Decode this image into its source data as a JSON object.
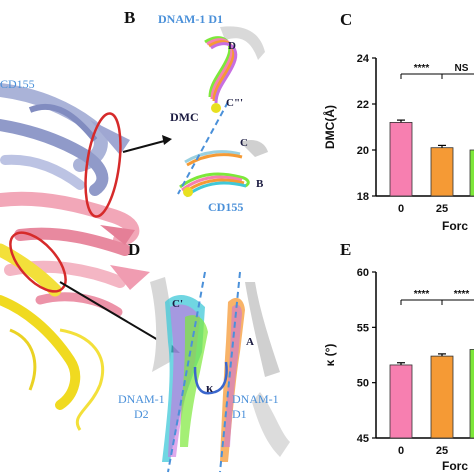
{
  "panels": {
    "b": {
      "letter": "B",
      "title": "DNAM-1 D1",
      "label_dmc": "DMC",
      "label_d": "D",
      "label_c3": "C\"'",
      "label_c": "C",
      "label_b": "B",
      "label_cd155": "CD155"
    },
    "a": {
      "label_cd155": "CD155"
    },
    "c": {
      "letter": "C"
    },
    "d": {
      "letter": "D",
      "label_c2": "C'",
      "label_a": "A",
      "label_kappa": "κ",
      "label_left": "DNAM-1\nD2",
      "label_right": "DNAM-1\nD1",
      "left_line1": "DNAM-1",
      "left_line2": "D2",
      "right_line1": "DNAM-1",
      "right_line2": "D1"
    },
    "e": {
      "letter": "E"
    }
  },
  "colors": {
    "pink": "#f77fb0",
    "orange": "#f59a35",
    "green": "#7de83a",
    "blue_text": "#4a90d9"
  },
  "chart_data": [
    {
      "type": "bar",
      "panel": "C",
      "ylabel": "DMC(Å)",
      "xlabel": "Forc",
      "categories": [
        "0",
        "25",
        "5"
      ],
      "values": [
        21.2,
        20.1,
        20.0
      ],
      "errors": [
        0.1,
        0.1,
        0.1
      ],
      "colors": [
        "#f77fb0",
        "#f59a35",
        "#7de83a"
      ],
      "ylim": [
        18,
        24
      ],
      "yticks": [
        "18",
        "20",
        "22",
        "24"
      ],
      "significance": [
        {
          "label": "****",
          "from": 0,
          "to": 1
        },
        {
          "label": "NS",
          "from": 1,
          "to": 2
        }
      ]
    },
    {
      "type": "bar",
      "panel": "E",
      "ylabel": "κ (°)",
      "xlabel": "Forc",
      "categories": [
        "0",
        "25",
        ""
      ],
      "values": [
        51.6,
        52.4,
        53.0
      ],
      "errors": [
        0.2,
        0.2,
        0.2
      ],
      "colors": [
        "#f77fb0",
        "#f59a35",
        "#7de83a"
      ],
      "ylim": [
        45,
        60
      ],
      "yticks": [
        "45",
        "50",
        "55",
        "60"
      ],
      "significance": [
        {
          "label": "****",
          "from": 0,
          "to": 1
        },
        {
          "label": "****",
          "from": 1,
          "to": 2
        }
      ]
    }
  ]
}
